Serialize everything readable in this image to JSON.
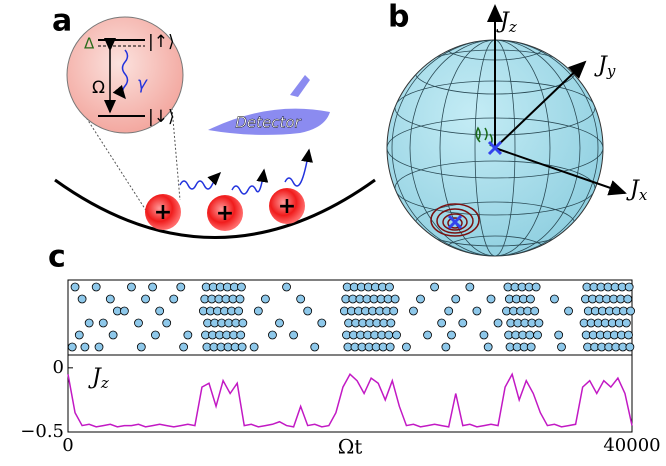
{
  "panels": {
    "a": {
      "label": "a",
      "delta": "Δ",
      "up": "|↑⟩",
      "down": "|↓⟩",
      "omega": "Ω",
      "gamma": "γ",
      "detector": "Detector",
      "ion_charges": [
        "+",
        "+",
        "+"
      ]
    },
    "b": {
      "label": "b",
      "jz": {
        "symbol": "J",
        "subscript": "z"
      },
      "jy": {
        "symbol": "J",
        "subscript": "y"
      },
      "jx": {
        "symbol": "J",
        "subscript": "x"
      }
    },
    "c": {
      "label": "c"
    }
  },
  "chart_data": [
    {
      "type": "event-raster",
      "xlim": [
        0,
        40000
      ],
      "color": "#8ec8ea",
      "rows": [
        [
          500,
          2000,
          4500,
          6000,
          8000,
          9800,
          10300,
          10800,
          11300,
          11800,
          12300,
          15500,
          19800,
          20300,
          20800,
          21300,
          21800,
          22300,
          22800,
          26000,
          28500,
          31200,
          31700,
          32200,
          32700,
          33200,
          36800,
          37300,
          37800,
          38300,
          38800,
          39300,
          39800
        ],
        [
          1000,
          3000,
          5500,
          7500,
          9700,
          10200,
          10700,
          11200,
          11700,
          12200,
          14000,
          16500,
          19700,
          20200,
          20700,
          21200,
          21700,
          22200,
          22700,
          23200,
          25000,
          27500,
          30000,
          31300,
          31800,
          32300,
          32800,
          34500,
          36700,
          37200,
          37700,
          38200,
          38700,
          39200,
          39700
        ],
        [
          3500,
          4000,
          6500,
          9600,
          10100,
          10600,
          11100,
          11600,
          12100,
          13500,
          17000,
          19600,
          20100,
          20600,
          21100,
          21600,
          22100,
          22600,
          23100,
          24500,
          27000,
          29000,
          31100,
          31600,
          32100,
          32600,
          33100,
          35500,
          36900,
          37400,
          37900,
          38400,
          38900,
          39400,
          39900
        ],
        [
          1500,
          2500,
          5000,
          7000,
          9900,
          10400,
          10900,
          11400,
          11900,
          12400,
          15000,
          18000,
          19900,
          20400,
          20900,
          21400,
          21900,
          22400,
          22900,
          26500,
          28000,
          30500,
          31400,
          31900,
          32400,
          32900,
          33400,
          36600,
          37100,
          37600,
          38100,
          38600,
          39100,
          39600
        ],
        [
          800,
          3200,
          6200,
          8500,
          9750,
          10250,
          10750,
          11250,
          11750,
          12250,
          14500,
          16000,
          19750,
          20250,
          20750,
          21250,
          21750,
          22250,
          22750,
          23300,
          25500,
          27200,
          29500,
          31250,
          31750,
          32250,
          32750,
          33300,
          34800,
          36750,
          37250,
          37750,
          38250,
          38750,
          39250,
          39750
        ],
        [
          300,
          1200,
          2200,
          5200,
          8200,
          9850,
          10350,
          10850,
          11350,
          11850,
          12350,
          13200,
          17500,
          19850,
          20350,
          20850,
          21350,
          21850,
          22350,
          22850,
          24000,
          26800,
          29800,
          31350,
          31850,
          32350,
          32850,
          35000,
          36850,
          37350,
          37850,
          38350,
          38850,
          39350,
          39850
        ]
      ]
    },
    {
      "type": "line",
      "color": "#c219c4",
      "x_label": "Ωt",
      "y_label": {
        "symbol": "J",
        "subscript": "z"
      },
      "xlim": [
        0,
        40000
      ],
      "ylim": [
        -0.5,
        0.1
      ],
      "xticks": [
        0,
        40000
      ],
      "yticks": [
        0,
        {
          "value": -0.5,
          "label": "−0.5"
        }
      ],
      "x": [
        0,
        500,
        1000,
        1500,
        2000,
        2500,
        3000,
        3500,
        4000,
        4500,
        5000,
        5500,
        6000,
        6500,
        7000,
        7500,
        8000,
        8500,
        9000,
        9500,
        10000,
        10500,
        11000,
        11500,
        12000,
        12500,
        13000,
        13500,
        14000,
        14500,
        15000,
        15500,
        16000,
        16500,
        17000,
        17500,
        18000,
        18500,
        19000,
        19500,
        20000,
        20500,
        21000,
        21500,
        22000,
        22500,
        23000,
        23500,
        24000,
        24500,
        25000,
        25500,
        26000,
        26500,
        27000,
        27500,
        28000,
        28500,
        29000,
        29500,
        30000,
        30500,
        31000,
        31500,
        32000,
        32500,
        33000,
        33500,
        34000,
        34500,
        35000,
        35500,
        36000,
        36500,
        37000,
        37500,
        38000,
        38500,
        39000,
        39500,
        40000
      ],
      "values": [
        -0.05,
        -0.35,
        -0.45,
        -0.44,
        -0.46,
        -0.45,
        -0.44,
        -0.46,
        -0.45,
        -0.45,
        -0.44,
        -0.46,
        -0.45,
        -0.44,
        -0.45,
        -0.46,
        -0.45,
        -0.44,
        -0.45,
        -0.15,
        -0.12,
        -0.3,
        -0.1,
        -0.2,
        -0.12,
        -0.45,
        -0.44,
        -0.46,
        -0.45,
        -0.44,
        -0.42,
        -0.45,
        -0.46,
        -0.3,
        -0.45,
        -0.44,
        -0.46,
        -0.45,
        -0.35,
        -0.15,
        -0.05,
        -0.1,
        -0.2,
        -0.08,
        -0.12,
        -0.25,
        -0.1,
        -0.3,
        -0.45,
        -0.44,
        -0.46,
        -0.45,
        -0.44,
        -0.45,
        -0.46,
        -0.2,
        -0.45,
        -0.44,
        -0.46,
        -0.45,
        -0.44,
        -0.45,
        -0.15,
        -0.05,
        -0.25,
        -0.1,
        -0.2,
        -0.35,
        -0.45,
        -0.44,
        -0.46,
        -0.45,
        -0.44,
        -0.15,
        -0.1,
        -0.2,
        -0.1,
        -0.15,
        -0.08,
        -0.2,
        -0.45
      ]
    }
  ]
}
